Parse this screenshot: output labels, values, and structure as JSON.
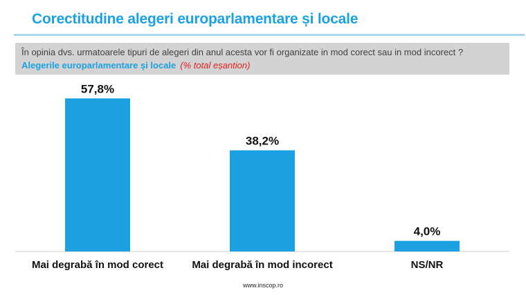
{
  "header": {
    "title": "Corectitudine alegeri europarlamentare și locale",
    "question": "În opinia dvs. urmatoarele tipuri de alegeri din anul acesta vor fi organizate in mod corect sau in mod incorect ?",
    "subtitle": "Alegerile europarlamentare și locale",
    "subtitle_note": "(% total eșantion)"
  },
  "footer": {
    "url": "www.inscop.ro"
  },
  "colors": {
    "accent": "#1ba1e2",
    "bar": "#1ba1e2",
    "note": "#e02020",
    "box": "#d3d3d3"
  },
  "chart_data": {
    "type": "bar",
    "categories": [
      "Mai degrabă în mod corect",
      "Mai degrabă în mod incorect",
      "NS/NR"
    ],
    "values": [
      57.8,
      38.2,
      4.0
    ],
    "value_labels": [
      "57,8%",
      "38,2%",
      "4,0%"
    ],
    "ylim": [
      0,
      60
    ],
    "grid": false,
    "legend": "none"
  }
}
